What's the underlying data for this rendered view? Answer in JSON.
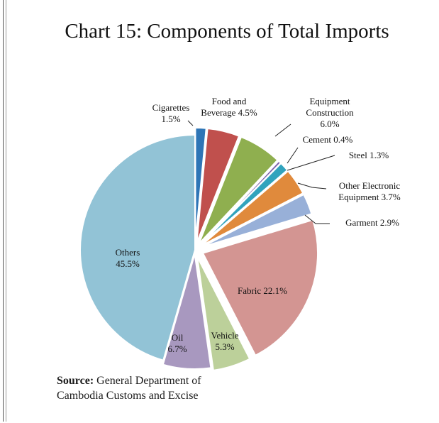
{
  "chart_data": {
    "type": "pie",
    "title": "Chart 15: Components of Total Imports",
    "slices": [
      {
        "name": "Cigarettes",
        "label_lines": [
          "Cigarettes",
          "1.5%"
        ],
        "value": 1.5,
        "color": "#2e75b6"
      },
      {
        "name": "Food and Beverage",
        "label_lines": [
          "Food and",
          "Beverage 4.5%"
        ],
        "value": 4.5,
        "color": "#c0504d"
      },
      {
        "name": "Equipment Construction",
        "label_lines": [
          "Equipment",
          "Construction",
          "6.0%"
        ],
        "value": 6.0,
        "color": "#8faf4f"
      },
      {
        "name": "Cement",
        "label_lines": [
          "Cement 0.4%"
        ],
        "value": 0.4,
        "color": "#7a5fa8"
      },
      {
        "name": "Steel",
        "label_lines": [
          "Steel 1.3%"
        ],
        "value": 1.3,
        "color": "#31a3bd"
      },
      {
        "name": "Other Electronic Equipment",
        "label_lines": [
          "Other Electronic",
          "Equipment  3.7%"
        ],
        "value": 3.7,
        "color": "#e08a3c"
      },
      {
        "name": "Garment",
        "label_lines": [
          "Garment 2.9%"
        ],
        "value": 2.9,
        "color": "#98b0d8"
      },
      {
        "name": "Fabric",
        "label_lines": [
          "Fabric 22.1%"
        ],
        "value": 22.1,
        "color": "#d39592"
      },
      {
        "name": "Vehicle",
        "label_lines": [
          "Vehicle",
          "5.3%"
        ],
        "value": 5.3,
        "color": "#bcd09a"
      },
      {
        "name": "Oil",
        "label_lines": [
          "Oil",
          "6.7%"
        ],
        "value": 6.7,
        "color": "#a898bf"
      },
      {
        "name": "Others",
        "label_lines": [
          "Others",
          "45.5%"
        ],
        "value": 45.5,
        "color": "#92c3d6"
      }
    ]
  },
  "source": {
    "label": "Source:",
    "text_line1": " General Department of",
    "text_line2": "Cambodia Customs and Excise"
  }
}
